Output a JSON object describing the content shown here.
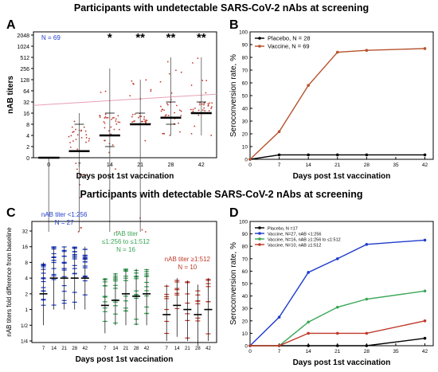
{
  "section_titles": [
    "Participants with undetectable SARS-CoV-2 nAbs at screening",
    "Participants with detectable SARS-CoV-2 nAbs at screening"
  ],
  "colors": {
    "blue": "#1f3ccc",
    "red": "#c0392b",
    "green": "#3aa657",
    "black": "#000000",
    "brown": "#b5532e",
    "pink_line": "#e8a0b4"
  },
  "chart_data": [
    {
      "panel": "A",
      "type": "scatter",
      "ylabel": "nAB titers",
      "xlabel": "Days post 1st vaccination",
      "annotation": "N = 69",
      "categories": [
        "0",
        "7",
        "14",
        "21",
        "28",
        "42"
      ],
      "y_ticks": [
        "0",
        "2",
        "4",
        "8",
        "16",
        "32",
        "64",
        "128",
        "256",
        "512",
        "1024",
        "2048"
      ],
      "significance": [
        "",
        "",
        "*",
        "**",
        "**",
        "**"
      ],
      "medians": [
        0,
        1.5,
        4,
        8,
        12,
        16
      ],
      "iqr": [
        [
          0,
          0
        ],
        [
          0,
          8
        ],
        [
          2,
          16
        ],
        [
          8,
          16
        ],
        [
          8,
          32
        ],
        [
          16,
          32
        ]
      ],
      "ranges": [
        [
          0,
          0
        ],
        [
          0,
          16
        ],
        [
          0,
          256
        ],
        [
          0,
          128
        ],
        [
          4,
          512
        ],
        [
          4,
          512
        ]
      ]
    },
    {
      "panel": "B",
      "type": "line",
      "ylabel": "Seroconversion rate, %",
      "xlabel": "Days post 1st vaccination",
      "x_ticks": [
        0,
        7,
        14,
        21,
        28,
        35,
        42
      ],
      "y_ticks": [
        0,
        10,
        20,
        30,
        40,
        50,
        60,
        70,
        80,
        90,
        100
      ],
      "ylim": [
        0,
        100
      ],
      "xlim": [
        0,
        44
      ],
      "series": [
        {
          "name": "Placebo, N = 28",
          "x": [
            0,
            7,
            14,
            21,
            28,
            42
          ],
          "values": [
            0,
            3.5,
            3.5,
            3.5,
            3.5,
            3.5
          ]
        },
        {
          "name": "Vaccine, N = 69",
          "x": [
            0,
            7,
            14,
            21,
            28,
            42
          ],
          "values": [
            0,
            21.7,
            58,
            84,
            85.5,
            86.9
          ]
        }
      ]
    },
    {
      "panel": "C",
      "type": "scatter",
      "ylabel": "nAB titers fold difference from baseline",
      "xlabel": "Days post 1st vaccination",
      "categories": [
        "7",
        "14",
        "21",
        "28",
        "42"
      ],
      "y_ticks": [
        "1/4",
        "1/2",
        "1",
        "2",
        "4",
        "8",
        "16",
        "32"
      ],
      "groups": [
        {
          "label_line1": "nAB titer <1:256",
          "label_line2": "N = 27",
          "medians": [
            2,
            4,
            4,
            4,
            4
          ],
          "iqr": [
            [
              1,
              4
            ],
            [
              2,
              8
            ],
            [
              2,
              8
            ],
            [
              2,
              8
            ],
            [
              2,
              8
            ]
          ]
        },
        {
          "label_line1": "nAB titer",
          "label_line2": "≤1:256 to ≤1:512",
          "label_line3": "N = 16",
          "medians": [
            1.2,
            1.5,
            2,
            1.8,
            2
          ],
          "iqr": [
            [
              0.7,
              2
            ],
            [
              1,
              2.5
            ],
            [
              1,
              3
            ],
            [
              1,
              3
            ],
            [
              1,
              3
            ]
          ]
        },
        {
          "label_line1": "nAB titer ≥1:512",
          "label_line2": "N = 10",
          "medians": [
            0.8,
            1.2,
            1,
            0.8,
            1
          ],
          "iqr": [
            [
              0.5,
              1.5
            ],
            [
              0.6,
              2
            ],
            [
              0.5,
              1.8
            ],
            [
              0.4,
              1.5
            ],
            [
              0.5,
              2
            ]
          ]
        }
      ]
    },
    {
      "panel": "D",
      "type": "line",
      "ylabel": "Seroconversion rate, %",
      "xlabel": "Days post 1st vaccination",
      "x_ticks": [
        0,
        7,
        14,
        21,
        28,
        35,
        42
      ],
      "y_ticks": [
        0,
        10,
        20,
        30,
        40,
        50,
        60,
        70,
        80,
        90,
        100
      ],
      "ylim": [
        0,
        100
      ],
      "xlim": [
        0,
        44
      ],
      "series": [
        {
          "name": "Placebo, N =17",
          "x": [
            0,
            7,
            14,
            21,
            28,
            42
          ],
          "values": [
            0,
            0,
            0,
            0,
            0,
            6
          ]
        },
        {
          "name": "Vaccine, N=27, nAB <1:256",
          "x": [
            0,
            7,
            14,
            21,
            28,
            42
          ],
          "values": [
            0,
            23,
            59,
            70,
            81.5,
            85
          ]
        },
        {
          "name": "Vaccine, N=16, nAB ≥1:256 to ≤1:512",
          "x": [
            0,
            7,
            14,
            21,
            28,
            42
          ],
          "values": [
            0,
            0,
            19,
            31,
            37.5,
            44
          ]
        },
        {
          "name": "Vaccine, N=10, nAB ≥1:512",
          "x": [
            0,
            7,
            14,
            21,
            28,
            42
          ],
          "values": [
            0,
            0,
            10,
            10,
            10,
            20
          ]
        }
      ]
    }
  ]
}
